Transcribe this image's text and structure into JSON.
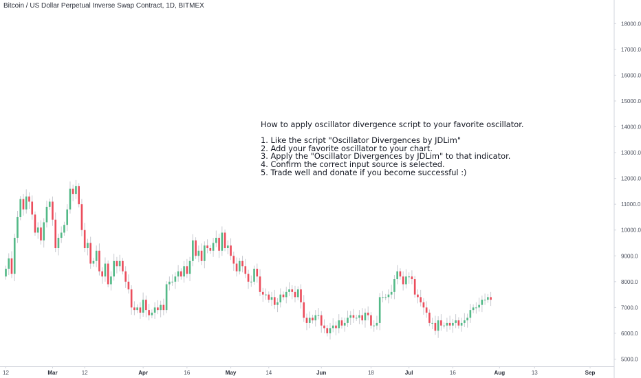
{
  "header": {
    "title": "Bitcoin / US Dollar Perpetual Inverse Swap Contract, 1D, BITMEX"
  },
  "note": {
    "lines": [
      "How to apply oscillator divergence script to your favorite oscillator.",
      "",
      "1. Like the script \"Oscillator Divergences by JDLim\"",
      "2. Add your favorite oscillator to your chart.",
      "3. Apply the \"Oscillator Divergences by JDLim\" to that indicator.",
      "4. Confirm the correct input source is selected.",
      "5. Trade well and donate if you become successful :)"
    ]
  },
  "colors": {
    "up": "#53b987",
    "down": "#eb4d5c",
    "wick": "#c7c9cf",
    "axis": "#d1d4dc",
    "text": "#4a4f5c"
  },
  "chart_data": {
    "type": "candlestick",
    "ylim": [
      4800,
      18700
    ],
    "y_ticks": [
      "5000.0",
      "6000.0",
      "7000.0",
      "8000.0",
      "9000.0",
      "10000.0",
      "11000.0",
      "12000.0",
      "13000.0",
      "14000.0",
      "15000.0",
      "16000.0",
      "17000.0",
      "18000.0"
    ],
    "x_ticks": [
      {
        "label": "12",
        "bold": false,
        "day": 0
      },
      {
        "label": "Mar",
        "bold": true,
        "day": 16
      },
      {
        "label": "12",
        "bold": false,
        "day": 27
      },
      {
        "label": "Apr",
        "bold": true,
        "day": 47
      },
      {
        "label": "16",
        "bold": false,
        "day": 62
      },
      {
        "label": "May",
        "bold": true,
        "day": 77
      },
      {
        "label": "14",
        "bold": false,
        "day": 90
      },
      {
        "label": "Jun",
        "bold": true,
        "day": 108
      },
      {
        "label": "18",
        "bold": false,
        "day": 125
      },
      {
        "label": "Jul",
        "bold": true,
        "day": 138
      },
      {
        "label": "16",
        "bold": false,
        "day": 153
      },
      {
        "label": "Aug",
        "bold": true,
        "day": 169
      },
      {
        "label": "13",
        "bold": false,
        "day": 181
      },
      {
        "label": "Sep",
        "bold": true,
        "day": 200
      }
    ],
    "x_range": [
      -2,
      208
    ],
    "closes": [
      8500,
      8900,
      8300,
      9700,
      10500,
      11200,
      10800,
      11300,
      11100,
      10600,
      9900,
      10100,
      9600,
      10300,
      10900,
      11100,
      10400,
      9300,
      9700,
      9900,
      10200,
      10800,
      11600,
      11400,
      11700,
      11000,
      10000,
      9300,
      9500,
      8700,
      8800,
      9200,
      8400,
      8200,
      8700,
      7900,
      8200,
      8800,
      8600,
      8800,
      8400,
      8000,
      7700,
      7000,
      6900,
      7000,
      6800,
      7300,
      6900,
      6700,
      6800,
      7000,
      6900,
      7100,
      6900,
      7900,
      8000,
      8000,
      8200,
      8400,
      8200,
      8600,
      8300,
      8800,
      9600,
      9000,
      9200,
      8800,
      9400,
      9300,
      9200,
      9500,
      9700,
      9200,
      9900,
      9300,
      9400,
      9000,
      8700,
      8400,
      8800,
      8600,
      8300,
      8000,
      8000,
      8500,
      8200,
      7600,
      7500,
      7500,
      7300,
      7400,
      7100,
      7200,
      7500,
      7400,
      7600,
      7700,
      7600,
      7400,
      7700,
      7200,
      6600,
      6400,
      6600,
      6500,
      6700,
      6700,
      6300,
      6200,
      6000,
      6200,
      6300,
      6200,
      6500,
      6300,
      6400,
      6600,
      6700,
      6600,
      6600,
      6700,
      6500,
      6800,
      6700,
      6300,
      6300,
      6400,
      7400,
      7400,
      7400,
      7500,
      7600,
      8100,
      8400,
      8200,
      7900,
      8200,
      8200,
      8100,
      7500,
      7400,
      7200,
      7000,
      6800,
      6400,
      6400,
      6100,
      6500,
      6300,
      6300,
      6400,
      6300,
      6400,
      6500,
      6300,
      6400,
      6500,
      6600,
      6900,
      7000,
      7000,
      7100,
      7300,
      7300,
      7400,
      7300
    ],
    "start_open": 8200
  }
}
